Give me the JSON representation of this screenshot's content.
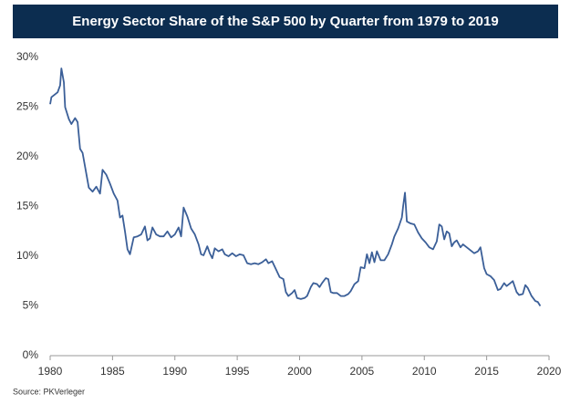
{
  "chart_data": {
    "type": "line",
    "title": "Energy Sector Share of the S&P 500 by Quarter from 1979 to 2019",
    "source": "Source: PKVerleger",
    "x": [
      1980.0,
      1980.1,
      1980.3,
      1980.6,
      1980.8,
      1980.9,
      1981.1,
      1981.2,
      1981.5,
      1981.7,
      1982.0,
      1982.2,
      1982.4,
      1982.6,
      1982.9,
      1983.1,
      1983.4,
      1983.7,
      1984.0,
      1984.2,
      1984.5,
      1984.8,
      1985.1,
      1985.4,
      1985.6,
      1985.8,
      1986.0,
      1986.2,
      1986.4,
      1986.7,
      1987.0,
      1987.3,
      1987.6,
      1987.8,
      1988.0,
      1988.2,
      1988.5,
      1988.8,
      1989.1,
      1989.4,
      1989.7,
      1990.0,
      1990.3,
      1990.5,
      1990.7,
      1991.0,
      1991.3,
      1991.6,
      1991.9,
      1992.1,
      1992.3,
      1992.6,
      1992.8,
      1993.0,
      1993.2,
      1993.5,
      1993.8,
      1994.0,
      1994.3,
      1994.6,
      1994.9,
      1995.2,
      1995.5,
      1995.8,
      1996.1,
      1996.4,
      1996.7,
      1997.0,
      1997.3,
      1997.5,
      1997.8,
      1998.1,
      1998.4,
      1998.7,
      1998.9,
      1999.1,
      1999.4,
      1999.6,
      1999.8,
      2000.1,
      2000.4,
      2000.6,
      2000.9,
      2001.1,
      2001.4,
      2001.6,
      2001.8,
      2002.1,
      2002.3,
      2002.5,
      2002.7,
      2003.0,
      2003.3,
      2003.6,
      2003.9,
      2004.1,
      2004.4,
      2004.7,
      2004.9,
      2005.2,
      2005.4,
      2005.6,
      2005.8,
      2006.0,
      2006.2,
      2006.5,
      2006.8,
      2007.1,
      2007.4,
      2007.6,
      2007.9,
      2008.2,
      2008.3,
      2008.45,
      2008.6,
      2008.9,
      2009.2,
      2009.5,
      2009.8,
      2010.1,
      2010.4,
      2010.7,
      2011.0,
      2011.2,
      2011.4,
      2011.6,
      2011.8,
      2012.0,
      2012.2,
      2012.4,
      2012.6,
      2012.9,
      2013.1,
      2013.4,
      2013.7,
      2014.0,
      2014.3,
      2014.5,
      2014.8,
      2015.0,
      2015.3,
      2015.6,
      2015.9,
      2016.1,
      2016.4,
      2016.6,
      2016.9,
      2017.1,
      2017.4,
      2017.6,
      2017.9,
      2018.1,
      2018.3,
      2018.6,
      2018.9,
      2019.1,
      2019.3
    ],
    "series": [
      {
        "color": "#3b5f98",
        "values": [
          25.3,
          26.0,
          26.2,
          26.5,
          27.2,
          28.9,
          27.5,
          25.0,
          23.8,
          23.3,
          23.9,
          23.5,
          20.8,
          20.4,
          18.3,
          16.9,
          16.5,
          17.0,
          16.3,
          18.7,
          18.2,
          17.3,
          16.3,
          15.6,
          13.9,
          14.1,
          12.5,
          10.7,
          10.2,
          11.9,
          12.0,
          12.2,
          13.0,
          11.6,
          11.8,
          12.9,
          12.2,
          12.0,
          12.0,
          12.5,
          11.9,
          12.2,
          12.9,
          12.0,
          14.9,
          14.0,
          12.8,
          12.2,
          11.2,
          10.2,
          10.1,
          11.0,
          10.3,
          9.8,
          10.8,
          10.5,
          10.7,
          10.2,
          10.0,
          10.3,
          10.0,
          10.2,
          10.1,
          9.3,
          9.2,
          9.3,
          9.2,
          9.4,
          9.7,
          9.3,
          9.5,
          8.7,
          7.9,
          7.7,
          6.4,
          6.0,
          6.3,
          6.6,
          5.8,
          5.7,
          5.8,
          6.0,
          6.9,
          7.3,
          7.2,
          6.9,
          7.3,
          7.8,
          7.7,
          6.4,
          6.3,
          6.3,
          6.0,
          6.0,
          6.2,
          6.5,
          7.2,
          7.5,
          8.9,
          8.8,
          10.2,
          9.3,
          10.4,
          9.4,
          10.5,
          9.6,
          9.6,
          10.2,
          11.2,
          12.0,
          12.8,
          13.9,
          15.0,
          16.4,
          13.5,
          13.3,
          13.2,
          12.4,
          11.8,
          11.4,
          10.9,
          10.7,
          11.5,
          13.2,
          13.0,
          11.7,
          12.5,
          12.3,
          11.0,
          11.4,
          11.6,
          10.9,
          11.2,
          10.9,
          10.6,
          10.3,
          10.5,
          10.9,
          8.8,
          8.2,
          8.0,
          7.6,
          6.6,
          6.7,
          7.3,
          7.0,
          7.3,
          7.5,
          6.4,
          6.1,
          6.2,
          7.1,
          6.8,
          6.0,
          5.5,
          5.4,
          5.0
        ]
      }
    ],
    "xlim": [
      1980,
      2020
    ],
    "xticks": [
      1980,
      1985,
      1990,
      1995,
      2000,
      2005,
      2010,
      2015,
      2020
    ],
    "ylim": [
      0,
      30
    ],
    "yticks": [
      {
        "value": 0,
        "label": "0%"
      },
      {
        "value": 5,
        "label": "5%"
      },
      {
        "value": 10,
        "label": "10%"
      },
      {
        "value": 15,
        "label": "15%"
      },
      {
        "value": 20,
        "label": "20%"
      },
      {
        "value": 25,
        "label": "25%"
      },
      {
        "value": 30,
        "label": "30%"
      }
    ],
    "grid": false
  }
}
